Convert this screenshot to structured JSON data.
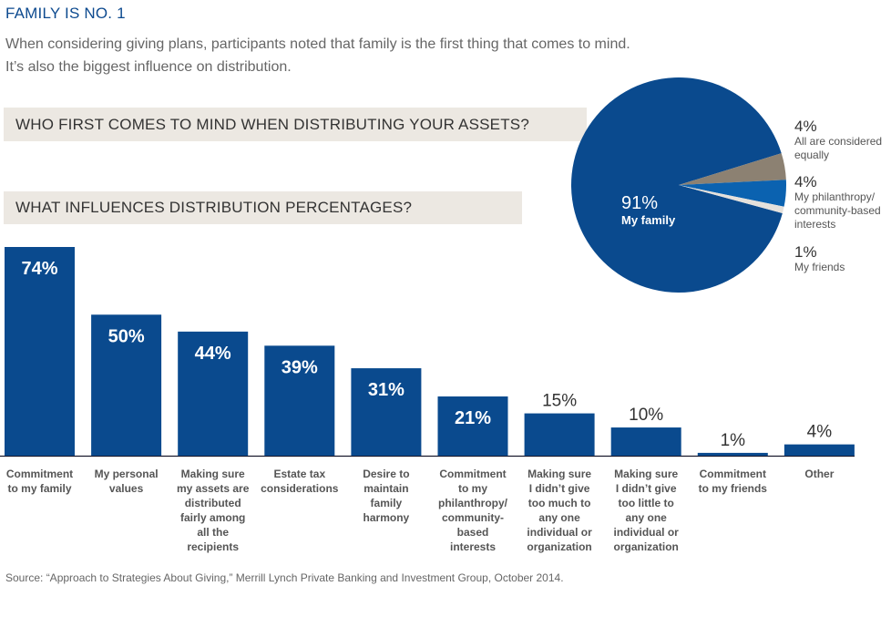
{
  "header": {
    "title": "FAMILY IS NO. 1",
    "subtitle_line1": "When considering giving plans, participants noted that family is the first thing that comes to mind.",
    "subtitle_line2": "It’s also the biggest influence on distribution."
  },
  "colors": {
    "primary_blue": "#0a4a8e",
    "accent_blue": "#0b62b0",
    "taupe": "#8c8172",
    "light_gray": "#e5e1dc",
    "band_bg": "#ece8e2"
  },
  "source": "Source: “Approach to Strategies About Giving,” Merrill Lynch Private Banking and Investment Group, October 2014.",
  "chart_data": [
    {
      "type": "pie",
      "title": "WHO FIRST COMES TO MIND WHEN DISTRIBUTING YOUR ASSETS?",
      "slices": [
        {
          "label": "My family",
          "value": 91,
          "display": "91%",
          "color": "#0a4a8e"
        },
        {
          "label": "All are considered equally",
          "value": 4,
          "display": "4%",
          "color": "#8c8172"
        },
        {
          "label": "My philanthropy/ community-based interests",
          "value": 4,
          "display": "4%",
          "color": "#0b62b0"
        },
        {
          "label": "My friends",
          "value": 1,
          "display": "1%",
          "color": "#e5e1dc"
        }
      ],
      "legend": [
        {
          "pct": "4%",
          "lines": [
            "All are considered",
            "equally"
          ]
        },
        {
          "pct": "4%",
          "lines": [
            "My philanthropy/",
            "community-based",
            "interests"
          ]
        },
        {
          "pct": "1%",
          "lines": [
            "My friends"
          ]
        }
      ],
      "center_label": {
        "pct": "91%",
        "label": "My family"
      }
    },
    {
      "type": "bar",
      "title": "WHAT INFLUENCES DISTRIBUTION PERCENTAGES?",
      "xlabel": "",
      "ylabel": "",
      "ylim": [
        0,
        74
      ],
      "grid": false,
      "unit": "%",
      "categories": [
        [
          "Commitment",
          "to my family"
        ],
        [
          "My personal",
          "values"
        ],
        [
          "Making sure",
          "my assets are",
          "distributed",
          "fairly among",
          "all the",
          "recipients"
        ],
        [
          "Estate tax",
          "considerations"
        ],
        [
          "Desire to",
          "maintain",
          "family",
          "harmony"
        ],
        [
          "Commitment",
          "to my",
          "philanthropy/",
          "community-",
          "based",
          "interests"
        ],
        [
          "Making sure",
          "I didn’t give",
          "too much to",
          "any one",
          "individual or",
          "organization"
        ],
        [
          "Making sure",
          "I didn’t give",
          "too little to",
          "any one",
          "individual or",
          "organization"
        ],
        [
          "Commitment",
          "to my friends"
        ],
        [
          "Other"
        ]
      ],
      "values": [
        74,
        50,
        44,
        39,
        31,
        21,
        15,
        10,
        1,
        4
      ],
      "labels": [
        "74%",
        "50%",
        "44%",
        "39%",
        "31%",
        "21%",
        "15%",
        "10%",
        "1%",
        "4%"
      ]
    }
  ]
}
